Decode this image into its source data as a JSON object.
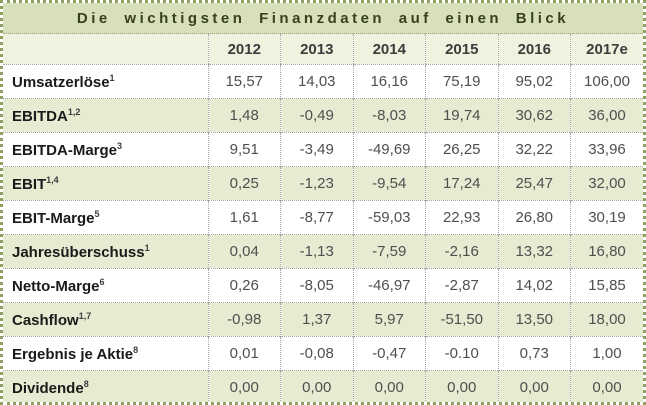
{
  "chart_data": {
    "type": "table",
    "title": "Die wichtigsten Finanzdaten auf einen Blick",
    "columns": [
      "2012",
      "2013",
      "2014",
      "2015",
      "2016",
      "2017e"
    ],
    "rows": [
      {
        "label": "Umsatzerlöse",
        "footnote": "1",
        "values": [
          "15,57",
          "14,03",
          "16,16",
          "75,19",
          "95,02",
          "106,00"
        ]
      },
      {
        "label": "EBITDA",
        "footnote": "1,2",
        "values": [
          "1,48",
          "-0,49",
          "-8,03",
          "19,74",
          "30,62",
          "36,00"
        ]
      },
      {
        "label": "EBITDA-Marge",
        "footnote": "3",
        "values": [
          "9,51",
          "-3,49",
          "-49,69",
          "26,25",
          "32,22",
          "33,96"
        ]
      },
      {
        "label": "EBIT",
        "footnote": "1,4",
        "values": [
          "0,25",
          "-1,23",
          "-9,54",
          "17,24",
          "25,47",
          "32,00"
        ]
      },
      {
        "label": "EBIT-Marge",
        "footnote": "5",
        "values": [
          "1,61",
          "-8,77",
          "-59,03",
          "22,93",
          "26,80",
          "30,19"
        ]
      },
      {
        "label": "Jahresüberschuss",
        "footnote": "1",
        "values": [
          "0,04",
          "-1,13",
          "-7,59",
          "-2,16",
          "13,32",
          "16,80"
        ]
      },
      {
        "label": "Netto-Marge",
        "footnote": "6",
        "values": [
          "0,26",
          "-8,05",
          "-46,97",
          "-2,87",
          "14,02",
          "15,85"
        ]
      },
      {
        "label": "Cashflow",
        "footnote": "1,7",
        "values": [
          "-0,98",
          "1,37",
          "5,97",
          "-51,50",
          "13,50",
          "18,00"
        ]
      },
      {
        "label": "Ergebnis je Aktie",
        "footnote": "8",
        "values": [
          "0,01",
          "-0,08",
          "-0,47",
          "-0.10",
          "0,73",
          "1,00"
        ]
      },
      {
        "label": "Dividende",
        "footnote": "8",
        "values": [
          "0,00",
          "0,00",
          "0,00",
          "0,00",
          "0,00",
          "0,00"
        ]
      }
    ]
  },
  "colors": {
    "outer_border": "#8fa061",
    "title_background": "#d7e0ba",
    "title_text": "#38401c",
    "header_background": "#eef2de",
    "row_stripe_green": "#e5ecd1",
    "row_stripe_white": "#ffffff",
    "grid_dotted": "#a5a5a5",
    "label_text": "#1a1a1a",
    "value_text": "#4f4f4f"
  }
}
